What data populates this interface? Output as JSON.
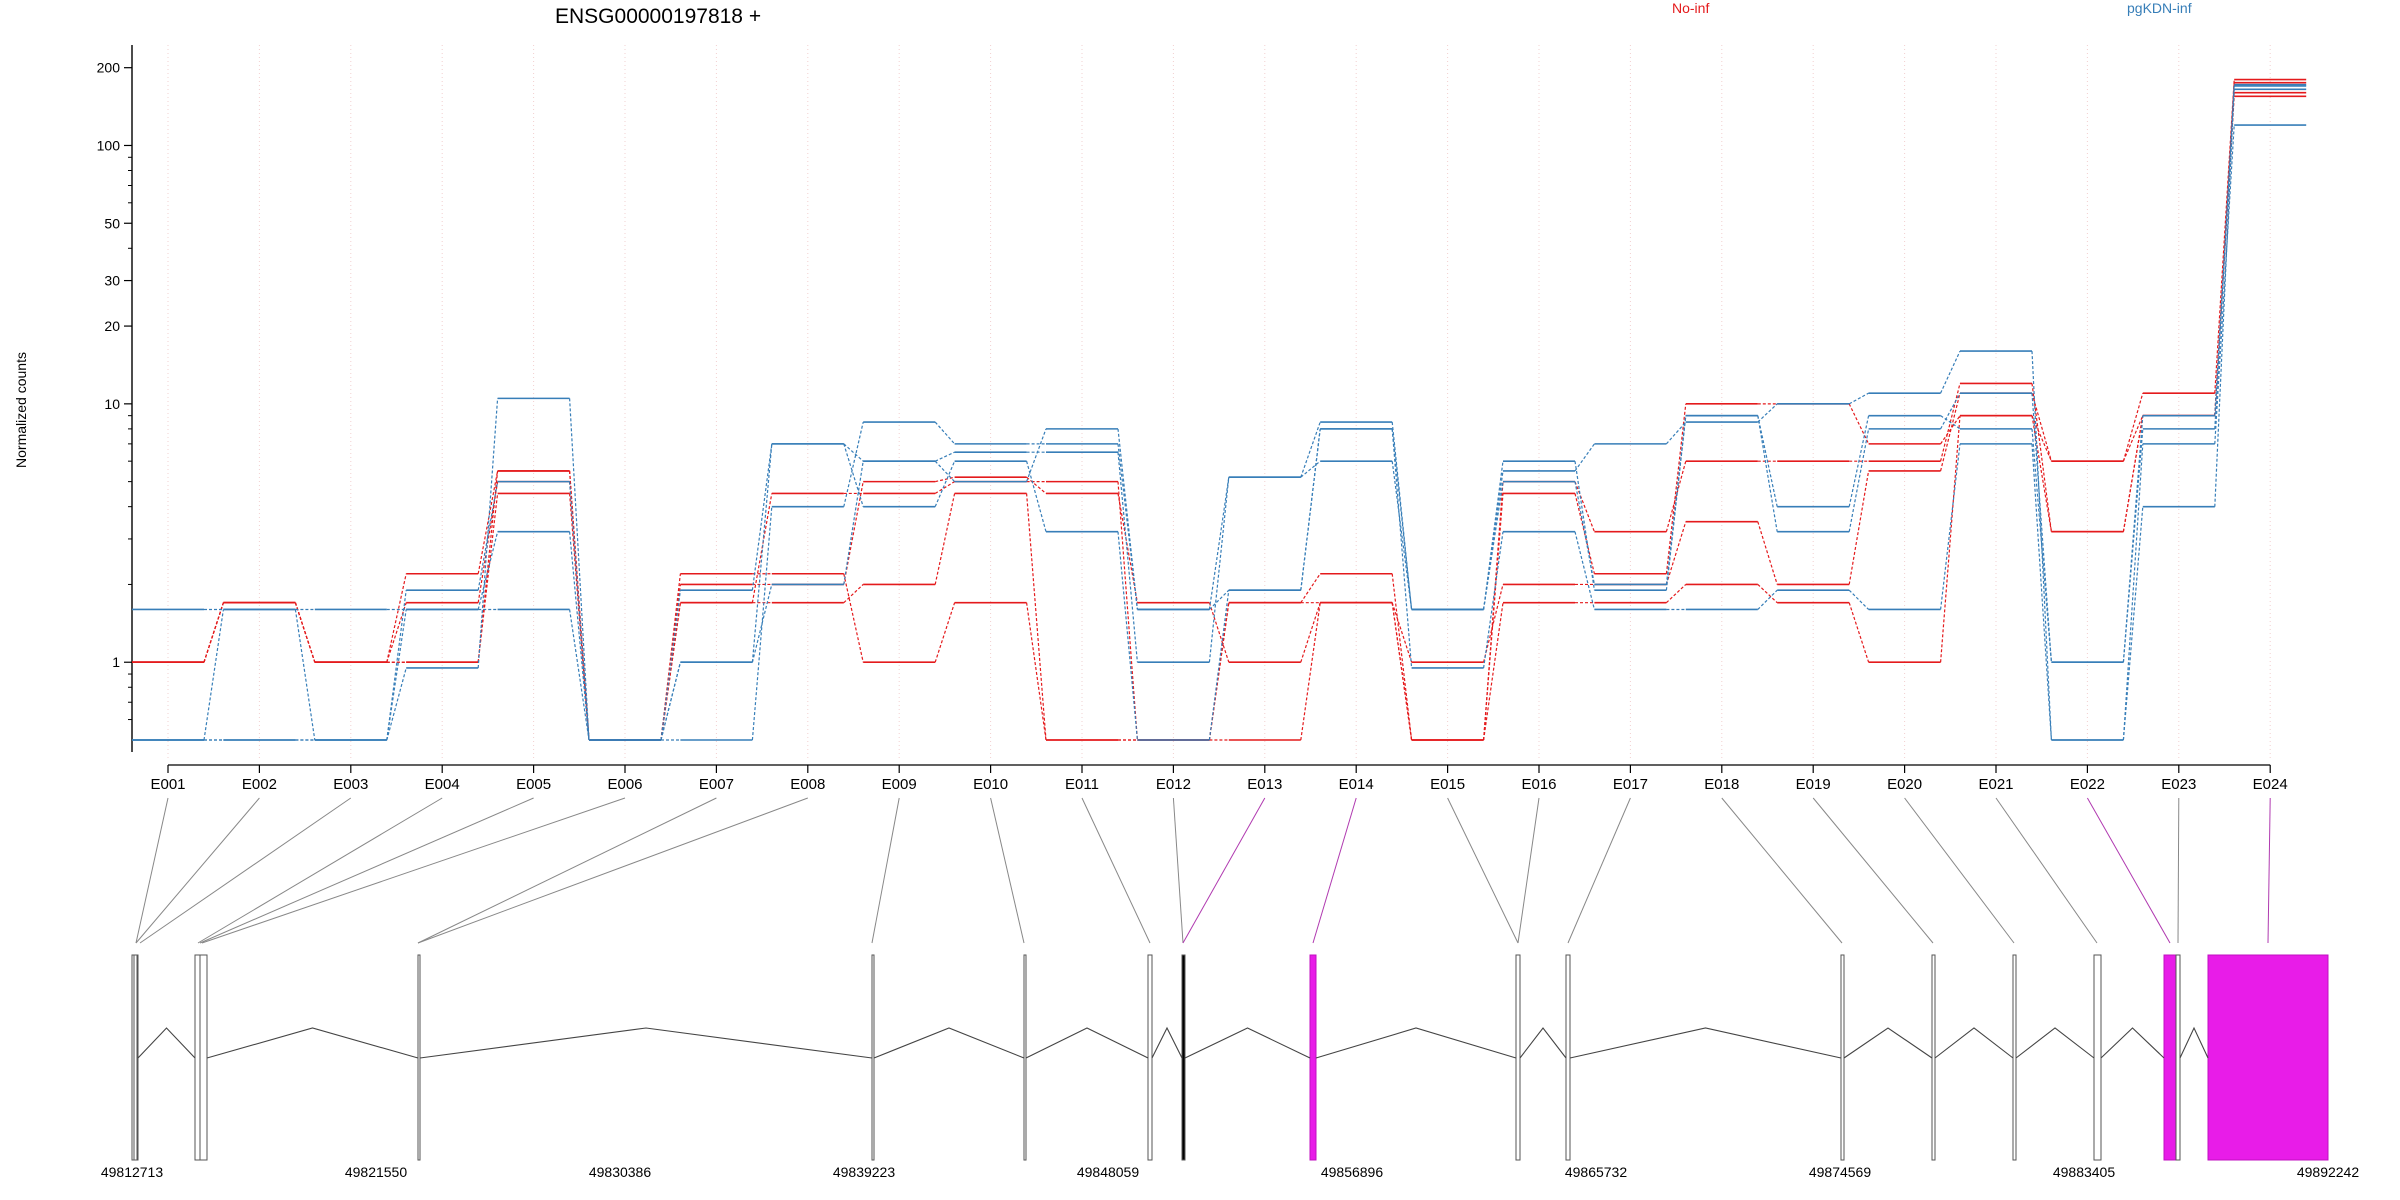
{
  "chart_data": {
    "type": "line",
    "title": "ENSG00000197818 +",
    "ylabel": "Normalized counts",
    "yscale": "log",
    "ylim": [
      0.5,
      220
    ],
    "y_ticks": [
      1,
      10,
      20,
      30,
      50,
      100,
      200
    ],
    "grid": "vertical-dotted",
    "legend": {
      "placement": "top-right",
      "entries": [
        {
          "name": "No-inf",
          "color": "#e41a1c"
        },
        {
          "name": "pgKDN-inf",
          "color": "#377eb8"
        }
      ]
    },
    "categories": [
      "E001",
      "E002",
      "E003",
      "E004",
      "E005",
      "E006",
      "E007",
      "E008",
      "E009",
      "E010",
      "E011",
      "E012",
      "E013",
      "E014",
      "E015",
      "E016",
      "E017",
      "E018",
      "E019",
      "E020",
      "E021",
      "E022",
      "E023",
      "E024"
    ],
    "series": [
      {
        "group": "No-inf",
        "color": "#e41a1c",
        "values": [
          1,
          1.7,
          1,
          1,
          5.5,
          0.5,
          1.7,
          1.7,
          2,
          4.5,
          0.5,
          0.5,
          0.5,
          1.7,
          0.5,
          1.7,
          1.7,
          2,
          1.7,
          1,
          9,
          6,
          11,
          180
        ]
      },
      {
        "group": "No-inf",
        "color": "#e41a1c",
        "values": [
          1,
          1.7,
          1,
          1.7,
          5,
          0.5,
          2,
          2,
          5,
          5.2,
          4.5,
          1.7,
          1,
          1.7,
          1,
          2,
          2,
          3.5,
          2,
          5.5,
          11,
          6,
          9,
          175
        ]
      },
      {
        "group": "No-inf",
        "color": "#e41a1c",
        "values": [
          1,
          1.7,
          1,
          2.2,
          5.5,
          0.5,
          1.7,
          4.5,
          4.5,
          5,
          5,
          0.5,
          1.7,
          2.2,
          0.5,
          5,
          3.2,
          6,
          6,
          6,
          12,
          3.2,
          9,
          160
        ]
      },
      {
        "group": "No-inf",
        "color": "#e41a1c",
        "values": [
          1,
          1.7,
          1,
          1,
          4.5,
          0.5,
          2.2,
          2.2,
          1,
          1.7,
          0.5,
          0.5,
          1.7,
          1.7,
          0.5,
          4.5,
          2.2,
          10,
          10,
          7,
          9,
          3.2,
          9,
          155
        ]
      },
      {
        "group": "pgKDN-inf",
        "color": "#377eb8",
        "values": [
          1.6,
          1.6,
          1.6,
          1.6,
          1.6,
          0.5,
          0.5,
          4,
          8.5,
          7,
          7,
          1.6,
          5.2,
          8.5,
          1.6,
          5.5,
          7,
          8.5,
          10,
          11,
          16,
          0.5,
          7,
          120
        ]
      },
      {
        "group": "pgKDN-inf",
        "color": "#377eb8",
        "values": [
          0.5,
          1.6,
          0.5,
          1.6,
          3.2,
          0.5,
          1,
          2,
          6,
          6.5,
          6.5,
          1,
          5.2,
          6,
          1.6,
          5,
          2,
          9,
          4,
          9,
          8,
          1,
          9,
          165
        ]
      },
      {
        "group": "pgKDN-inf",
        "color": "#377eb8",
        "values": [
          0.5,
          0.5,
          0.5,
          0.95,
          10.5,
          0.5,
          1,
          7,
          4,
          6,
          3.2,
          0.5,
          1.9,
          8,
          0.95,
          3.2,
          1.6,
          1.6,
          1.9,
          1.6,
          7,
          0.5,
          4,
          170
        ]
      },
      {
        "group": "pgKDN-inf",
        "color": "#377eb8",
        "values": [
          0.5,
          0.5,
          0.5,
          1.9,
          5,
          0.5,
          1.9,
          7,
          6,
          5,
          8,
          1.6,
          1.9,
          8,
          1.6,
          6,
          1.9,
          9,
          3.2,
          8,
          11,
          1,
          8,
          172
        ]
      }
    ],
    "gene_model": {
      "coordinates": [
        "49812713",
        "49821550",
        "49830386",
        "49839223",
        "49848059",
        "49856896",
        "49865732",
        "49874569",
        "49883405",
        "49892242"
      ]
    }
  }
}
